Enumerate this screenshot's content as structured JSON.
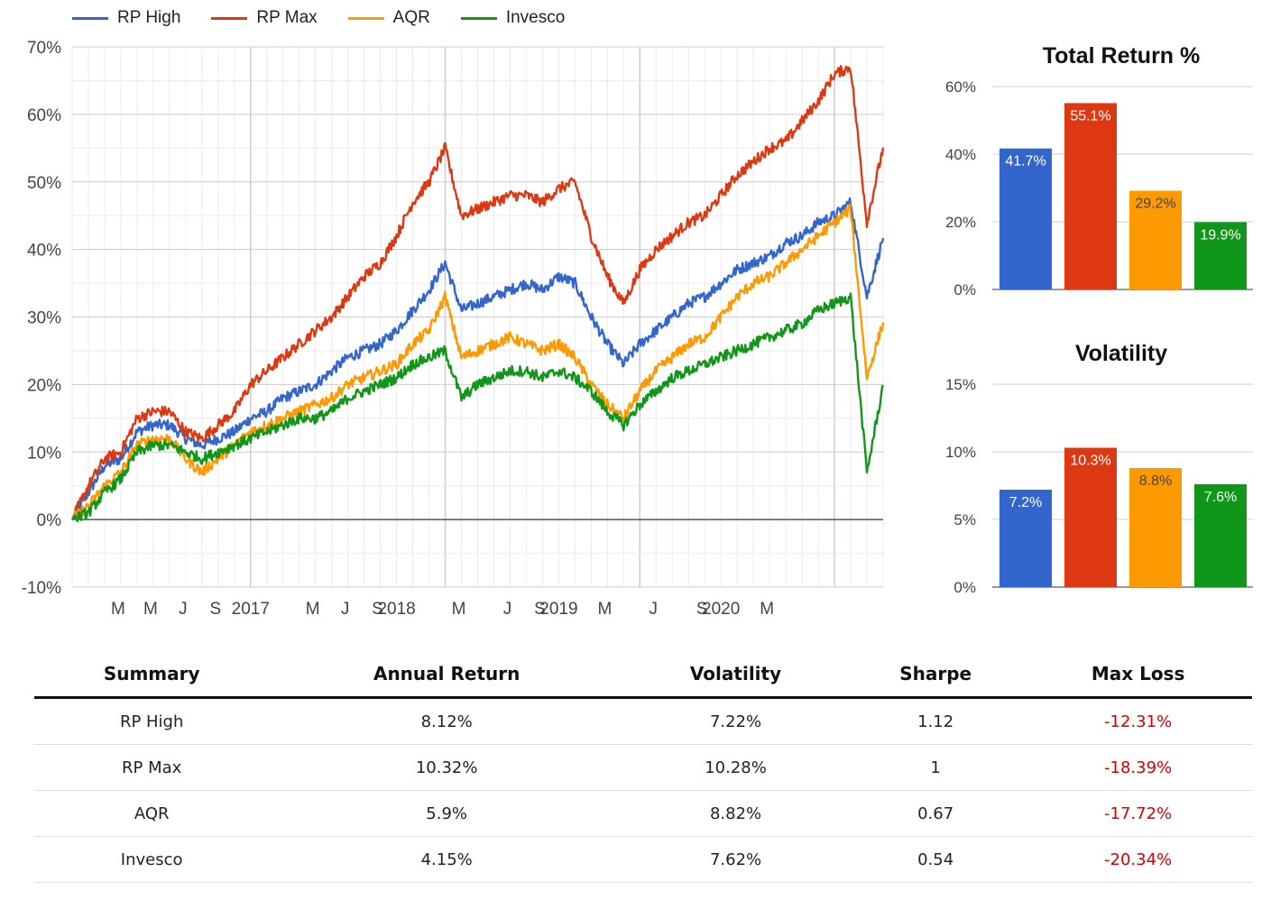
{
  "legend": [
    {
      "name": "RP High",
      "color": "#3366cc"
    },
    {
      "name": "RP Max",
      "color": "#dc3912"
    },
    {
      "name": "AQR",
      "color": "#ff9900"
    },
    {
      "name": "Invesco",
      "color": "#109618"
    }
  ],
  "chart_data": [
    {
      "type": "line",
      "title": "",
      "xlabel": "",
      "ylabel": "",
      "ylim": [
        -10,
        70
      ],
      "y_ticks": [
        "70%",
        "60%",
        "50%",
        "40%",
        "30%",
        "20%",
        "10%",
        "0%",
        "-10%"
      ],
      "x_ticks": [
        "M",
        "M",
        "J",
        "S",
        "2017",
        "M",
        "J",
        "S",
        "2018",
        "M",
        "J",
        "S",
        "2019",
        "M",
        "J",
        "S",
        "2020",
        "M"
      ],
      "x_range": [
        "2016-02",
        "2020-04"
      ],
      "grid": true,
      "legend_position": "top-left",
      "series": [
        {
          "name": "RP High",
          "color": "#3366cc",
          "x": [
            "2016-02",
            "2016-03",
            "2016-04",
            "2016-05",
            "2016-06",
            "2016-07",
            "2016-08",
            "2016-09",
            "2016-10",
            "2016-11",
            "2016-12",
            "2017-01",
            "2017-02",
            "2017-03",
            "2017-04",
            "2017-05",
            "2017-06",
            "2017-07",
            "2017-08",
            "2017-09",
            "2017-10",
            "2017-11",
            "2017-12",
            "2018-01",
            "2018-02",
            "2018-03",
            "2018-04",
            "2018-05",
            "2018-06",
            "2018-07",
            "2018-08",
            "2018-09",
            "2018-10",
            "2018-11",
            "2018-12",
            "2019-01",
            "2019-02",
            "2019-03",
            "2019-04",
            "2019-05",
            "2019-06",
            "2019-07",
            "2019-08",
            "2019-09",
            "2019-10",
            "2019-11",
            "2019-12",
            "2020-01",
            "2020-02",
            "2020-03",
            "2020-04"
          ],
          "values": [
            0,
            4,
            8,
            9,
            13,
            14,
            14,
            12,
            11,
            12,
            13,
            15,
            16,
            18,
            19,
            20,
            22,
            24,
            25,
            26,
            28,
            31,
            34,
            38,
            31,
            32,
            33,
            34,
            35,
            34,
            36,
            35,
            30,
            26,
            23,
            26,
            28,
            30,
            32,
            33,
            35,
            37,
            38,
            39,
            41,
            42,
            44,
            45,
            47,
            33,
            41.7
          ]
        },
        {
          "name": "RP Max",
          "color": "#dc3912",
          "x": [
            "2016-02",
            "2016-03",
            "2016-04",
            "2016-05",
            "2016-06",
            "2016-07",
            "2016-08",
            "2016-09",
            "2016-10",
            "2016-11",
            "2016-12",
            "2017-01",
            "2017-02",
            "2017-03",
            "2017-04",
            "2017-05",
            "2017-06",
            "2017-07",
            "2017-08",
            "2017-09",
            "2017-10",
            "2017-11",
            "2017-12",
            "2018-01",
            "2018-02",
            "2018-03",
            "2018-04",
            "2018-05",
            "2018-06",
            "2018-07",
            "2018-08",
            "2018-09",
            "2018-10",
            "2018-11",
            "2018-12",
            "2019-01",
            "2019-02",
            "2019-03",
            "2019-04",
            "2019-05",
            "2019-06",
            "2019-07",
            "2019-08",
            "2019-09",
            "2019-10",
            "2019-11",
            "2019-12",
            "2020-01",
            "2020-02",
            "2020-03",
            "2020-04"
          ],
          "values": [
            0,
            5,
            9,
            10,
            15,
            16,
            16,
            13,
            12,
            14,
            16,
            20,
            22,
            24,
            26,
            28,
            30,
            33,
            36,
            38,
            42,
            47,
            50,
            55,
            45,
            46,
            47,
            48,
            48,
            47,
            49,
            50,
            42,
            36,
            32,
            37,
            40,
            42,
            44,
            45,
            48,
            51,
            53,
            55,
            56,
            59,
            62,
            66,
            67,
            44,
            55.1
          ]
        },
        {
          "name": "AQR",
          "color": "#ff9900",
          "x": [
            "2016-02",
            "2016-03",
            "2016-04",
            "2016-05",
            "2016-06",
            "2016-07",
            "2016-08",
            "2016-09",
            "2016-10",
            "2016-11",
            "2016-12",
            "2017-01",
            "2017-02",
            "2017-03",
            "2017-04",
            "2017-05",
            "2017-06",
            "2017-07",
            "2017-08",
            "2017-09",
            "2017-10",
            "2017-11",
            "2017-12",
            "2018-01",
            "2018-02",
            "2018-03",
            "2018-04",
            "2018-05",
            "2018-06",
            "2018-07",
            "2018-08",
            "2018-09",
            "2018-10",
            "2018-11",
            "2018-12",
            "2019-01",
            "2019-02",
            "2019-03",
            "2019-04",
            "2019-05",
            "2019-06",
            "2019-07",
            "2019-08",
            "2019-09",
            "2019-10",
            "2019-11",
            "2019-12",
            "2020-01",
            "2020-02",
            "2020-03",
            "2020-04"
          ],
          "values": [
            0,
            2,
            5,
            7,
            11,
            12,
            12,
            9,
            7,
            9,
            11,
            13,
            14,
            15,
            16,
            17,
            18,
            20,
            21,
            22,
            23,
            26,
            28,
            33,
            24,
            25,
            26,
            27,
            26,
            25,
            26,
            24,
            20,
            17,
            15,
            19,
            22,
            24,
            26,
            27,
            30,
            33,
            35,
            36,
            38,
            40,
            42,
            44,
            46,
            21,
            29.2
          ]
        },
        {
          "name": "Invesco",
          "color": "#109618",
          "x": [
            "2016-02",
            "2016-03",
            "2016-04",
            "2016-05",
            "2016-06",
            "2016-07",
            "2016-08",
            "2016-09",
            "2016-10",
            "2016-11",
            "2016-12",
            "2017-01",
            "2017-02",
            "2017-03",
            "2017-04",
            "2017-05",
            "2017-06",
            "2017-07",
            "2017-08",
            "2017-09",
            "2017-10",
            "2017-11",
            "2017-12",
            "2018-01",
            "2018-02",
            "2018-03",
            "2018-04",
            "2018-05",
            "2018-06",
            "2018-07",
            "2018-08",
            "2018-09",
            "2018-10",
            "2018-11",
            "2018-12",
            "2019-01",
            "2019-02",
            "2019-03",
            "2019-04",
            "2019-05",
            "2019-06",
            "2019-07",
            "2019-08",
            "2019-09",
            "2019-10",
            "2019-11",
            "2019-12",
            "2020-01",
            "2020-02",
            "2020-03",
            "2020-04"
          ],
          "values": [
            0,
            1,
            4,
            6,
            10,
            11,
            11,
            10,
            9,
            10,
            11,
            12,
            13,
            14,
            15,
            15,
            16,
            18,
            19,
            20,
            21,
            23,
            24,
            25,
            18,
            20,
            21,
            22,
            22,
            21,
            22,
            21,
            19,
            16,
            14,
            17,
            19,
            21,
            22,
            23,
            24,
            25,
            26,
            27,
            28,
            29,
            31,
            32,
            33,
            7,
            19.9
          ]
        }
      ]
    },
    {
      "type": "bar",
      "title": "Total Return %",
      "categories": [
        "RP High",
        "RP Max",
        "AQR",
        "Invesco"
      ],
      "values": [
        41.7,
        55.1,
        29.2,
        19.9
      ],
      "data_labels": [
        "41.7%",
        "55.1%",
        "29.2%",
        "19.9%"
      ],
      "colors": [
        "#3366cc",
        "#dc3912",
        "#ff9900",
        "#109618"
      ],
      "ylim": [
        0,
        60
      ],
      "y_ticks": [
        "60%",
        "40%",
        "20%",
        "0%"
      ]
    },
    {
      "type": "bar",
      "title": "Volatility",
      "categories": [
        "RP High",
        "RP Max",
        "AQR",
        "Invesco"
      ],
      "values": [
        7.2,
        10.3,
        8.8,
        7.6
      ],
      "data_labels": [
        "7.2%",
        "10.3%",
        "8.8%",
        "7.6%"
      ],
      "colors": [
        "#3366cc",
        "#dc3912",
        "#ff9900",
        "#109618"
      ],
      "ylim": [
        0,
        15
      ],
      "y_ticks": [
        "15%",
        "10%",
        "5%",
        "0%"
      ]
    }
  ],
  "table": {
    "headers": [
      "Summary",
      "Annual Return",
      "Volatility",
      "Sharpe",
      "Max Loss"
    ],
    "rows": [
      [
        "RP High",
        "8.12%",
        "7.22%",
        "1.12",
        "-12.31%"
      ],
      [
        "RP Max",
        "10.32%",
        "10.28%",
        "1",
        "-18.39%"
      ],
      [
        "AQR",
        "5.9%",
        "8.82%",
        "0.67",
        "-17.72%"
      ],
      [
        "Invesco",
        "4.15%",
        "7.62%",
        "0.54",
        "-20.34%"
      ]
    ]
  }
}
